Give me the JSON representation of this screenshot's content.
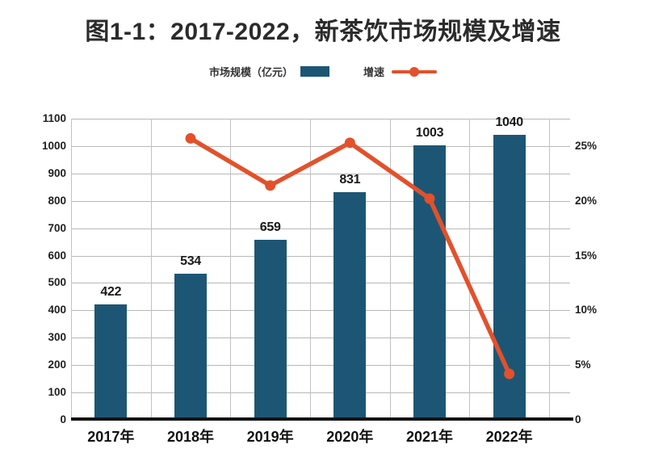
{
  "title": "图1-1：2017-2022，新茶饮市场规模及增速",
  "legend": {
    "bars_label": "市场规模（亿元）",
    "line_label": "增速"
  },
  "colors": {
    "bar": "#1d5674",
    "line": "#e2512b",
    "grid": "#b8b8b8",
    "axis": "#141414",
    "text": "#1f1f1f"
  },
  "chart_data": {
    "type": "bar",
    "subtype": "bar+line combo, dual axis",
    "title": "图1-1：2017-2022，新茶饮市场规模及增速",
    "categories": [
      "2017年",
      "2018年",
      "2019年",
      "2020年",
      "2021年",
      "2022年"
    ],
    "series": [
      {
        "name": "市场规模（亿元）",
        "type": "bar",
        "axis": "left",
        "values": [
          422,
          534,
          659,
          831,
          1003,
          1040
        ],
        "value_labels": [
          "422",
          "534",
          "659",
          "831",
          "1003",
          "1040"
        ]
      },
      {
        "name": "增速",
        "type": "line",
        "axis": "right",
        "values": [
          null,
          25.7,
          21.4,
          25.3,
          20.2,
          4.2
        ],
        "note": "percent, estimated from plotted point positions; no data labels shown"
      }
    ],
    "left_axis": {
      "min": 0,
      "max": 1100,
      "step": 100,
      "tick_labels": [
        "0",
        "100",
        "200",
        "300",
        "400",
        "500",
        "600",
        "700",
        "800",
        "900",
        "1000",
        "1100"
      ]
    },
    "right_axis": {
      "min": 0,
      "max": 27.5,
      "minor_step": 2.5,
      "label_step": 5,
      "tick_labels": [
        "0",
        "5%",
        "10%",
        "15%",
        "20%",
        "25%"
      ]
    },
    "grid": "horizontal every 100 (left axis), vertical at category boundaries",
    "legend_position": "top-center"
  }
}
